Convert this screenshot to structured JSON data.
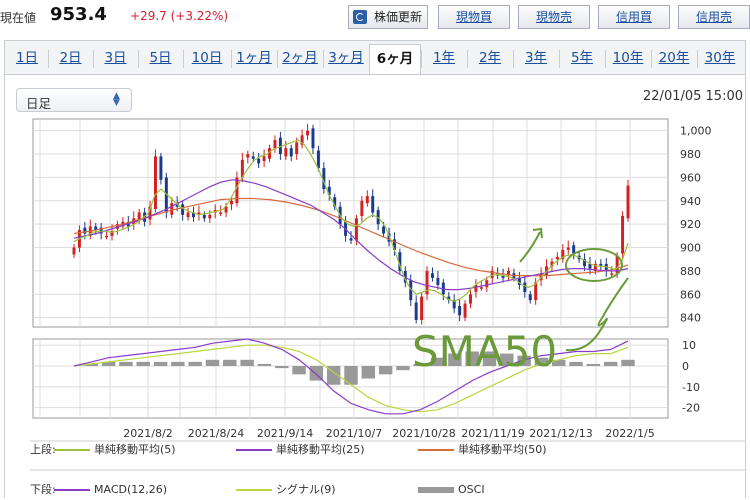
{
  "quote": {
    "label": "現在値",
    "price": "953.4",
    "change": "+29.7 (+3.22%)",
    "change_color": "#d22233"
  },
  "buttons": {
    "update": "株価更新",
    "spot_buy": "現物買",
    "spot_sell": "現物売",
    "margin_buy": "信用買",
    "margin_sell": "信用売"
  },
  "tabs": [
    "1日",
    "2日",
    "3日",
    "5日",
    "10日",
    "1ヶ月",
    "2ヶ月",
    "3ヶ月",
    "6ヶ月",
    "1年",
    "2年",
    "3年",
    "5年",
    "10年",
    "20年",
    "30年"
  ],
  "active_tab": "6ヶ月",
  "select": {
    "value": "日足"
  },
  "datetime": "22/01/05 15:00",
  "annotation": {
    "text": "SMA50",
    "color": "#6a9a3a"
  },
  "legend": {
    "upper_label": "上段:",
    "upper": [
      {
        "name": "単純移動平均(5)",
        "color": "#9ac03c"
      },
      {
        "name": "単純移動平均(25)",
        "color": "#8a3cc8"
      },
      {
        "name": "単純移動平均(50)",
        "color": "#d86a3a"
      }
    ],
    "lower_label": "下段:",
    "lower": [
      {
        "name": "MACD(12,26)",
        "color": "#8a3cc8"
      },
      {
        "name": "シグナル(9)",
        "color": "#b8d83c"
      },
      {
        "name": "OSCI",
        "color": "#999999"
      }
    ]
  },
  "chart_data": {
    "type": "candlestick",
    "up_color": "#d32020",
    "down_color": "#1a3a8c",
    "x_ticks": [
      "2021/8/2",
      "2021/8/24",
      "2021/9/14",
      "2021/10/7",
      "2021/10/28",
      "2021/11/19",
      "2021/12/13",
      "2022/1/5"
    ],
    "price_axis": {
      "ticks": [
        "1,000",
        "980",
        "960",
        "940",
        "920",
        "900",
        "880",
        "860",
        "840"
      ],
      "ylim": [
        832,
        1010
      ]
    },
    "osc_axis": {
      "ticks": [
        "10",
        "0",
        "-10",
        "-20"
      ],
      "ylim": [
        -25,
        13
      ]
    },
    "closes": [
      900,
      915,
      912,
      918,
      915,
      912,
      910,
      914,
      920,
      922,
      918,
      925,
      930,
      922,
      935,
      978,
      958,
      930,
      938,
      935,
      928,
      930,
      926,
      930,
      925,
      928,
      932,
      930,
      935,
      940,
      960,
      975,
      980,
      976,
      972,
      978,
      985,
      992,
      980,
      985,
      978,
      990,
      996,
      1000,
      985,
      968,
      950,
      945,
      935,
      920,
      910,
      906,
      925,
      940,
      944,
      930,
      920,
      912,
      905,
      898,
      880,
      870,
      855,
      838,
      858,
      880,
      874,
      868,
      860,
      855,
      848,
      842,
      852,
      860,
      868,
      866,
      872,
      880,
      876,
      874,
      880,
      874,
      868,
      862,
      855,
      870,
      878,
      884,
      888,
      892,
      898,
      900,
      895,
      890,
      884,
      882,
      886,
      884,
      880,
      878,
      893,
      927,
      953
    ],
    "sma5": [
      905,
      908,
      910,
      913,
      914,
      914,
      913,
      914,
      916,
      918,
      921,
      925,
      930,
      945,
      950,
      945,
      940,
      935,
      932,
      930,
      928,
      929,
      930,
      931,
      933,
      940,
      950,
      960,
      968,
      975,
      978,
      980,
      984,
      986,
      988,
      990,
      992,
      988,
      980,
      970,
      958,
      945,
      935,
      925,
      920,
      918,
      920,
      925,
      928,
      925,
      918,
      905,
      890,
      875,
      865,
      860,
      862,
      864,
      863,
      860,
      856,
      854,
      856,
      860,
      866,
      870,
      873,
      876,
      877,
      876,
      875,
      872,
      868,
      866,
      868,
      874,
      880,
      886,
      890,
      893,
      894,
      892,
      889,
      886,
      884,
      884,
      883,
      881,
      888,
      904
    ],
    "sma25": [
      908,
      910,
      912,
      915,
      918,
      921,
      924,
      928,
      932,
      937,
      942,
      947,
      952,
      956,
      958,
      957,
      955,
      952,
      948,
      944,
      940,
      936,
      930,
      924,
      916,
      906,
      897,
      889,
      882,
      876,
      871,
      868,
      866,
      864,
      864,
      865,
      867,
      869,
      871,
      873,
      875,
      877,
      879,
      881,
      882,
      882,
      881,
      880,
      880,
      882
    ],
    "sma50": [
      912,
      914,
      917,
      920,
      924,
      928,
      932,
      935,
      938,
      941,
      942,
      942,
      941,
      939,
      936,
      932,
      927,
      921,
      915,
      909,
      903,
      897,
      892,
      887,
      883,
      880,
      878,
      876,
      876,
      876,
      877,
      878,
      879,
      881,
      885
    ],
    "macd": [
      0,
      2,
      4,
      5,
      6,
      7,
      8,
      9,
      11,
      12,
      13,
      11,
      8,
      3,
      -4,
      -12,
      -18,
      -21,
      -23,
      -23,
      -21,
      -17,
      -12,
      -7,
      -3,
      0,
      3,
      5,
      6,
      7,
      7,
      8,
      12
    ],
    "signal": [
      0,
      1,
      2,
      3,
      4,
      5,
      6,
      7,
      8,
      9,
      10,
      10,
      9,
      7,
      3,
      -3,
      -9,
      -15,
      -19,
      -21,
      -22,
      -21,
      -18,
      -14,
      -10,
      -6,
      -2,
      1,
      3,
      5,
      6,
      6,
      9
    ],
    "osci": [
      0,
      1,
      2,
      2,
      2,
      2,
      2,
      2,
      3,
      3,
      3,
      1,
      -1,
      -4,
      -7,
      -9,
      -9,
      -6,
      -4,
      -2,
      1,
      4,
      6,
      7,
      7,
      6,
      5,
      4,
      3,
      2,
      1,
      2,
      3
    ]
  }
}
